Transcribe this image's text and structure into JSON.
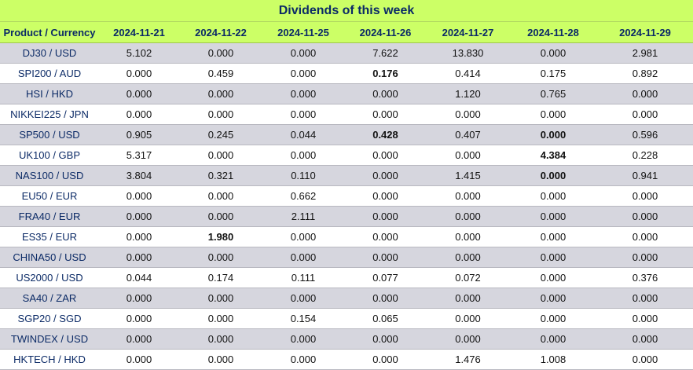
{
  "title": "Dividends of this week",
  "headers": [
    "Product / Currency",
    "2024-11-21",
    "2024-11-22",
    "2024-11-25",
    "2024-11-26",
    "2024-11-27",
    "2024-11-28",
    "2024-11-29"
  ],
  "rows": [
    {
      "product": "DJ30 / USD",
      "values": [
        "5.102",
        "0.000",
        "0.000",
        "7.622",
        "13.830",
        "0.000",
        "2.981"
      ],
      "bold": []
    },
    {
      "product": "SPI200 / AUD",
      "values": [
        "0.000",
        "0.459",
        "0.000",
        "0.176",
        "0.414",
        "0.175",
        "0.892"
      ],
      "bold": [
        3
      ]
    },
    {
      "product": "HSI / HKD",
      "values": [
        "0.000",
        "0.000",
        "0.000",
        "0.000",
        "1.120",
        "0.765",
        "0.000"
      ],
      "bold": []
    },
    {
      "product": "NIKKEI225 / JPN",
      "values": [
        "0.000",
        "0.000",
        "0.000",
        "0.000",
        "0.000",
        "0.000",
        "0.000"
      ],
      "bold": []
    },
    {
      "product": "SP500 / USD",
      "values": [
        "0.905",
        "0.245",
        "0.044",
        "0.428",
        "0.407",
        "0.000",
        "0.596"
      ],
      "bold": [
        3,
        5
      ]
    },
    {
      "product": "UK100 / GBP",
      "values": [
        "5.317",
        "0.000",
        "0.000",
        "0.000",
        "0.000",
        "4.384",
        "0.228"
      ],
      "bold": [
        5
      ]
    },
    {
      "product": "NAS100 / USD",
      "values": [
        "3.804",
        "0.321",
        "0.110",
        "0.000",
        "1.415",
        "0.000",
        "0.941"
      ],
      "bold": [
        5
      ]
    },
    {
      "product": "EU50 / EUR",
      "values": [
        "0.000",
        "0.000",
        "0.662",
        "0.000",
        "0.000",
        "0.000",
        "0.000"
      ],
      "bold": []
    },
    {
      "product": "FRA40 / EUR",
      "values": [
        "0.000",
        "0.000",
        "2.111",
        "0.000",
        "0.000",
        "0.000",
        "0.000"
      ],
      "bold": []
    },
    {
      "product": "ES35 / EUR",
      "values": [
        "0.000",
        "1.980",
        "0.000",
        "0.000",
        "0.000",
        "0.000",
        "0.000"
      ],
      "bold": [
        1
      ]
    },
    {
      "product": "CHINA50 / USD",
      "values": [
        "0.000",
        "0.000",
        "0.000",
        "0.000",
        "0.000",
        "0.000",
        "0.000"
      ],
      "bold": []
    },
    {
      "product": "US2000 / USD",
      "values": [
        "0.044",
        "0.174",
        "0.111",
        "0.077",
        "0.072",
        "0.000",
        "0.376"
      ],
      "bold": []
    },
    {
      "product": "SA40 / ZAR",
      "values": [
        "0.000",
        "0.000",
        "0.000",
        "0.000",
        "0.000",
        "0.000",
        "0.000"
      ],
      "bold": []
    },
    {
      "product": "SGP20 / SGD",
      "values": [
        "0.000",
        "0.000",
        "0.154",
        "0.065",
        "0.000",
        "0.000",
        "0.000"
      ],
      "bold": []
    },
    {
      "product": "TWINDEX / USD",
      "values": [
        "0.000",
        "0.000",
        "0.000",
        "0.000",
        "0.000",
        "0.000",
        "0.000"
      ],
      "bold": []
    },
    {
      "product": "HKTECH / HKD",
      "values": [
        "0.000",
        "0.000",
        "0.000",
        "0.000",
        "1.476",
        "1.008",
        "0.000"
      ],
      "bold": []
    }
  ]
}
